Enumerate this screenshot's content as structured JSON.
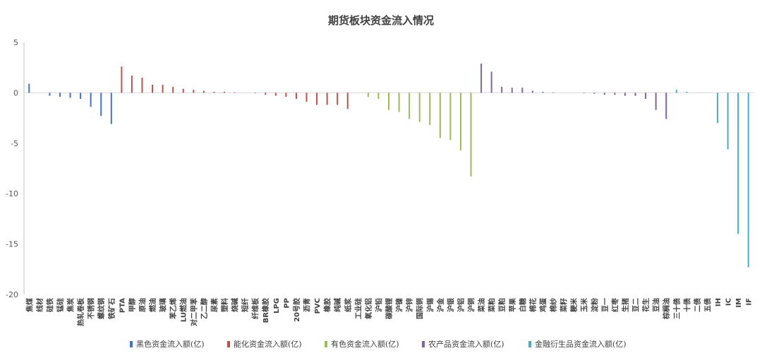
{
  "chart_data": {
    "type": "bar",
    "title": "期货板块资金流入情况",
    "xlabel": "",
    "ylabel": "",
    "ylim": [
      -20,
      5
    ],
    "yticks": [
      5,
      0,
      -5,
      -10,
      -15,
      -20
    ],
    "grid": false,
    "legend_position": "bottom",
    "series": [
      {
        "name": "黑色资金流入额(亿)",
        "color": "#4472C4",
        "points": [
          {
            "label": "焦煤",
            "value": 0.9
          },
          {
            "label": "线材",
            "value": 0.0
          },
          {
            "label": "硅铁",
            "value": -0.3
          },
          {
            "label": "锰硅",
            "value": -0.4
          },
          {
            "label": "焦炭",
            "value": -0.5
          },
          {
            "label": "热轧卷板",
            "value": -0.6
          },
          {
            "label": "不锈钢",
            "value": -1.4
          },
          {
            "label": "螺纹钢",
            "value": -2.3
          },
          {
            "label": "铁矿石",
            "value": -3.1
          }
        ]
      },
      {
        "name": "能化资金流入额(亿)",
        "color": "#C0504D",
        "points": [
          {
            "label": "PTA",
            "value": 2.6
          },
          {
            "label": "甲醇",
            "value": 1.7
          },
          {
            "label": "原油",
            "value": 1.5
          },
          {
            "label": "燃油",
            "value": 0.8
          },
          {
            "label": "玻璃",
            "value": 0.8
          },
          {
            "label": "苯乙烯",
            "value": 0.6
          },
          {
            "label": "LU燃油",
            "value": 0.4
          },
          {
            "label": "对二甲苯",
            "value": 0.3
          },
          {
            "label": "乙二醇",
            "value": 0.2
          },
          {
            "label": "尿素",
            "value": 0.1
          },
          {
            "label": "塑料",
            "value": 0.1
          },
          {
            "label": "烧碱",
            "value": 0.05
          },
          {
            "label": "短纤",
            "value": 0.0
          },
          {
            "label": "纤维板",
            "value": -0.05
          },
          {
            "label": "BR橡胶",
            "value": -0.2
          },
          {
            "label": "LPG",
            "value": -0.3
          },
          {
            "label": "PP",
            "value": -0.4
          },
          {
            "label": "20号胶",
            "value": -0.6
          },
          {
            "label": "沥青",
            "value": -0.9
          },
          {
            "label": "PVC",
            "value": -1.2
          },
          {
            "label": "橡胶",
            "value": -1.2
          },
          {
            "label": "纯碱",
            "value": -1.2
          },
          {
            "label": "纸浆",
            "value": -1.6
          }
        ]
      },
      {
        "name": "有色资金流入额(亿)",
        "color": "#9BBB59",
        "points": [
          {
            "label": "工业硅",
            "value": 0.0
          },
          {
            "label": "氧化铝",
            "value": -0.4
          },
          {
            "label": "沪铅",
            "value": -0.6
          },
          {
            "label": "碳酸锂",
            "value": -1.7
          },
          {
            "label": "沪镍",
            "value": -1.9
          },
          {
            "label": "沪锌",
            "value": -2.6
          },
          {
            "label": "国际铜",
            "value": -2.9
          },
          {
            "label": "沪锡",
            "value": -3.2
          },
          {
            "label": "沪金",
            "value": -4.5
          },
          {
            "label": "沪银",
            "value": -4.7
          },
          {
            "label": "沪铝",
            "value": -5.7
          },
          {
            "label": "沪铜",
            "value": -8.3
          }
        ]
      },
      {
        "name": "农产品资金流入额(亿)",
        "color": "#8064A2",
        "points": [
          {
            "label": "菜油",
            "value": 2.9
          },
          {
            "label": "菜粕",
            "value": 2.1
          },
          {
            "label": "豆粕",
            "value": 0.6
          },
          {
            "label": "苹果",
            "value": 0.5
          },
          {
            "label": "白糖",
            "value": 0.5
          },
          {
            "label": "棉花",
            "value": 0.2
          },
          {
            "label": "鸡蛋",
            "value": 0.1
          },
          {
            "label": "棉纱",
            "value": 0.05
          },
          {
            "label": "菜籽",
            "value": 0.0
          },
          {
            "label": "粳米",
            "value": 0.0
          },
          {
            "label": "玉米",
            "value": -0.05
          },
          {
            "label": "淀粉",
            "value": -0.1
          },
          {
            "label": "豆一",
            "value": -0.2
          },
          {
            "label": "红枣",
            "value": -0.2
          },
          {
            "label": "生猪",
            "value": -0.3
          },
          {
            "label": "豆二",
            "value": -0.3
          },
          {
            "label": "花生",
            "value": -0.6
          },
          {
            "label": "豆油",
            "value": -1.7
          },
          {
            "label": "棕榈油",
            "value": -2.6
          }
        ]
      },
      {
        "name": "金融衍生品资金流入额(亿)",
        "color": "#4BACC6",
        "points": [
          {
            "label": "三十债",
            "value": 0.3
          },
          {
            "label": "十债",
            "value": 0.1
          },
          {
            "label": "二债",
            "value": 0.0
          },
          {
            "label": "五债",
            "value": 0.0
          },
          {
            "label": "IH",
            "value": -3.0
          },
          {
            "label": "IC",
            "value": -5.6
          },
          {
            "label": "IM",
            "value": -14.0
          },
          {
            "label": "IF",
            "value": -17.3
          }
        ]
      }
    ]
  }
}
